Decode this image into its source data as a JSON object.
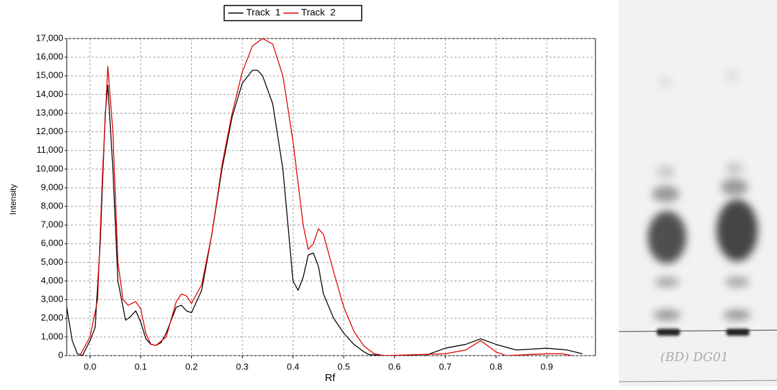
{
  "chart_data": {
    "type": "line",
    "y_label": "Intensity",
    "x_label": "Rf",
    "xlim": [
      -0.046,
      0.996
    ],
    "ylim": [
      0,
      17000
    ],
    "xticks": [
      {
        "value": 0,
        "label": "0.0"
      },
      0.1,
      0.2,
      0.3,
      0.4,
      0.5,
      0.6,
      0.7,
      0.8,
      0.9
    ],
    "yticks": [
      0,
      {
        "value": 1000,
        "label": "1,000"
      },
      {
        "value": 2000,
        "label": "2,000"
      },
      {
        "value": 3000,
        "label": "3,000"
      },
      {
        "value": 4000,
        "label": "4,000"
      },
      {
        "value": 5000,
        "label": "5,000"
      },
      {
        "value": 6000,
        "label": "6,000"
      },
      {
        "value": 7000,
        "label": "7,000"
      },
      {
        "value": 8000,
        "label": "8,000"
      },
      {
        "value": 9000,
        "label": "9,000"
      },
      {
        "value": 10000,
        "label": "10,000"
      },
      {
        "value": 11000,
        "label": "11,000"
      },
      {
        "value": 12000,
        "label": "12,000"
      },
      {
        "value": 13000,
        "label": "13,000"
      },
      {
        "value": 14000,
        "label": "14,000"
      },
      {
        "value": 15000,
        "label": "15,000"
      },
      {
        "value": 16000,
        "label": "16,000"
      },
      {
        "value": 17000,
        "label": "17,000"
      }
    ],
    "grid": true,
    "legend": "top",
    "series": [
      {
        "name": "Track  1",
        "color": "#000000",
        "x": [
          -0.046,
          -0.035,
          -0.025,
          -0.015,
          0.0,
          0.01,
          0.02,
          0.03,
          0.035,
          0.045,
          0.055,
          0.07,
          0.08,
          0.09,
          0.1,
          0.11,
          0.12,
          0.13,
          0.14,
          0.15,
          0.17,
          0.18,
          0.19,
          0.2,
          0.22,
          0.24,
          0.26,
          0.28,
          0.3,
          0.32,
          0.33,
          0.34,
          0.36,
          0.38,
          0.39,
          0.4,
          0.41,
          0.42,
          0.43,
          0.44,
          0.45,
          0.46,
          0.48,
          0.5,
          0.52,
          0.54,
          0.55,
          0.58,
          0.66,
          0.7,
          0.74,
          0.77,
          0.8,
          0.84,
          0.9,
          0.94,
          0.97
        ],
        "values": [
          2600,
          800,
          100,
          0,
          800,
          1500,
          6000,
          13000,
          14500,
          10000,
          4000,
          1900,
          2100,
          2400,
          1800,
          900,
          600,
          550,
          700,
          1200,
          2600,
          2700,
          2400,
          2300,
          3500,
          6500,
          10000,
          12800,
          14600,
          15300,
          15300,
          15000,
          13500,
          10000,
          7000,
          4000,
          3500,
          4200,
          5400,
          5500,
          4800,
          3300,
          2000,
          1200,
          600,
          200,
          50,
          0,
          0,
          400,
          600,
          900,
          600,
          300,
          400,
          300,
          100
        ]
      },
      {
        "name": "Track  2",
        "color": "#e00000",
        "x": [
          -0.02,
          0.0,
          0.015,
          0.025,
          0.035,
          0.045,
          0.055,
          0.065,
          0.075,
          0.09,
          0.1,
          0.11,
          0.12,
          0.13,
          0.15,
          0.17,
          0.18,
          0.19,
          0.2,
          0.22,
          0.24,
          0.26,
          0.28,
          0.3,
          0.32,
          0.34,
          0.36,
          0.38,
          0.4,
          0.42,
          0.43,
          0.44,
          0.45,
          0.46,
          0.48,
          0.5,
          0.52,
          0.54,
          0.56,
          0.58,
          0.7,
          0.74,
          0.77,
          0.8,
          0.82,
          0.9,
          0.93,
          0.95
        ],
        "values": [
          0,
          1000,
          3000,
          10000,
          15500,
          12000,
          5000,
          3000,
          2700,
          2900,
          2500,
          1200,
          600,
          550,
          1000,
          2900,
          3300,
          3200,
          2800,
          3800,
          6500,
          10200,
          13000,
          15200,
          16600,
          17000,
          16700,
          15000,
          11500,
          7000,
          5700,
          6000,
          6800,
          6500,
          4500,
          2600,
          1300,
          500,
          100,
          0,
          100,
          300,
          800,
          200,
          0,
          100,
          100,
          0
        ]
      }
    ],
    "plate_label": "(BD) DG01"
  }
}
